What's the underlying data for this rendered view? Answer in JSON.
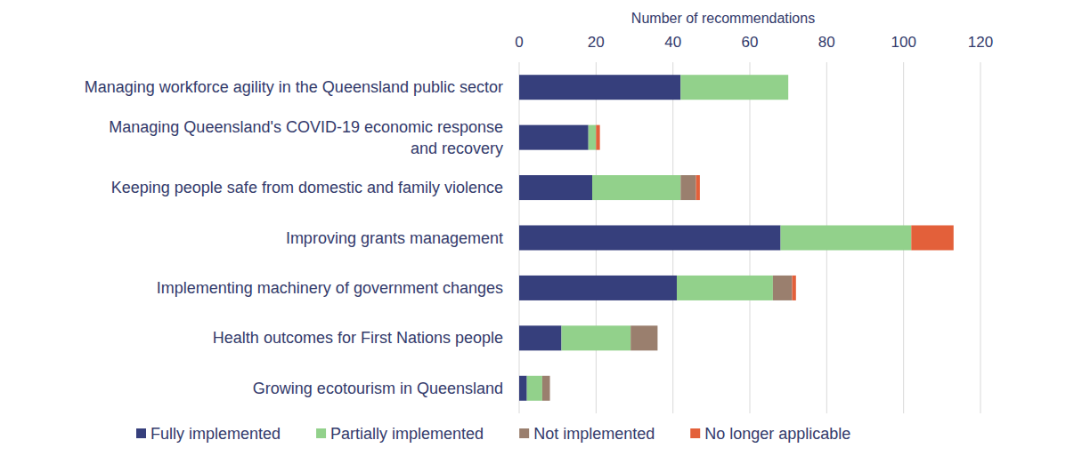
{
  "chart_data": {
    "type": "bar",
    "orientation": "horizontal",
    "stacked": true,
    "grid": true,
    "legend": "bottom",
    "x_label": "Number of recommendations",
    "categories": [
      "Managing workforce agility in the Queensland public sector",
      "Managing Queensland's COVID-19 economic response\nand recovery",
      "Keeping people safe from domestic and family violence",
      "Improving grants management",
      "Implementing machinery of government changes",
      "Health outcomes for First Nations people",
      "Growing ecotourism in Queensland"
    ],
    "series": [
      {
        "name": "Fully implemented",
        "color": "#363f7c",
        "values": [
          42,
          18,
          19,
          68,
          41,
          11,
          2
        ]
      },
      {
        "name": "Partially implemented",
        "color": "#92d18b",
        "values": [
          28,
          2,
          23,
          34,
          25,
          18,
          4
        ]
      },
      {
        "name": "Not implemented",
        "color": "#9a7f6e",
        "values": [
          0,
          0,
          4,
          0,
          5,
          7,
          2
        ]
      },
      {
        "name": "No longer applicable",
        "color": "#e3603a",
        "values": [
          0,
          1,
          1,
          11,
          1,
          0,
          0
        ]
      }
    ],
    "xlim": [
      0,
      120
    ],
    "xticks": [
      0,
      20,
      40,
      60,
      80,
      100,
      120
    ]
  }
}
